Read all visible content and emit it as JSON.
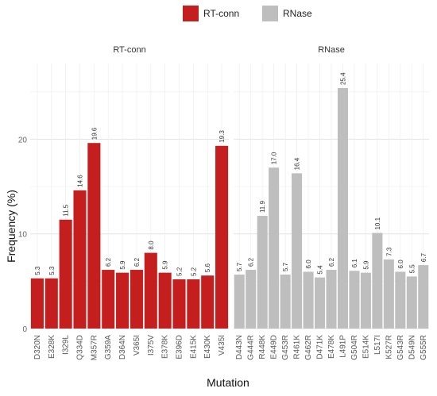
{
  "chart_data": {
    "type": "bar",
    "xlabel": "Mutation",
    "ylabel": "Frequency (%)",
    "ylim": [
      0,
      28
    ],
    "yticks": [
      0,
      10,
      20
    ],
    "grid": true,
    "legend": {
      "position": "top",
      "entries": [
        {
          "name": "RT-conn",
          "color": "#c41e1e"
        },
        {
          "name": "RNase",
          "color": "#bebebe"
        }
      ]
    },
    "panels": [
      {
        "title": "RT-conn",
        "color": "#c41e1e",
        "categories": [
          "D320N",
          "E328K",
          "I329L",
          "Q334D",
          "M357R",
          "G359A",
          "D364N",
          "V365I",
          "I375V",
          "E378K",
          "E396D",
          "E415K",
          "E430K",
          "V435I"
        ],
        "values": [
          5.3,
          5.3,
          11.5,
          14.6,
          19.6,
          6.2,
          5.9,
          6.2,
          8.0,
          5.9,
          5.2,
          5.2,
          5.6,
          19.3
        ],
        "labels": [
          "5.3",
          "5.3",
          "11.5",
          "14.6",
          "19.6",
          "6.2",
          "5.9",
          "6.2",
          "8.0",
          "5.9",
          "5.2",
          "5.2",
          "5.6",
          "19.3"
        ]
      },
      {
        "title": "RNase",
        "color": "#bebebe",
        "categories": [
          "D443N",
          "G444R",
          "R448K",
          "E449D",
          "G453R",
          "R461K",
          "G462R",
          "D471K",
          "E478K",
          "L491P",
          "G504R",
          "E514K",
          "L517I",
          "K527R",
          "G543R",
          "D549N",
          "G555R"
        ],
        "values": [
          5.7,
          6.2,
          11.9,
          17.0,
          5.7,
          16.4,
          6.0,
          5.4,
          6.2,
          25.4,
          6.1,
          5.9,
          10.1,
          7.3,
          6.0,
          5.5,
          6.7
        ],
        "labels": [
          "5.7",
          "6.2",
          "11.9",
          "17.0",
          "5.7",
          "16.4",
          "6.0",
          "5.4",
          "6.2",
          "25.4",
          "6.1",
          "5.9",
          "10.1",
          "7.3",
          "6.0",
          "5.5",
          "6.7"
        ]
      }
    ]
  }
}
